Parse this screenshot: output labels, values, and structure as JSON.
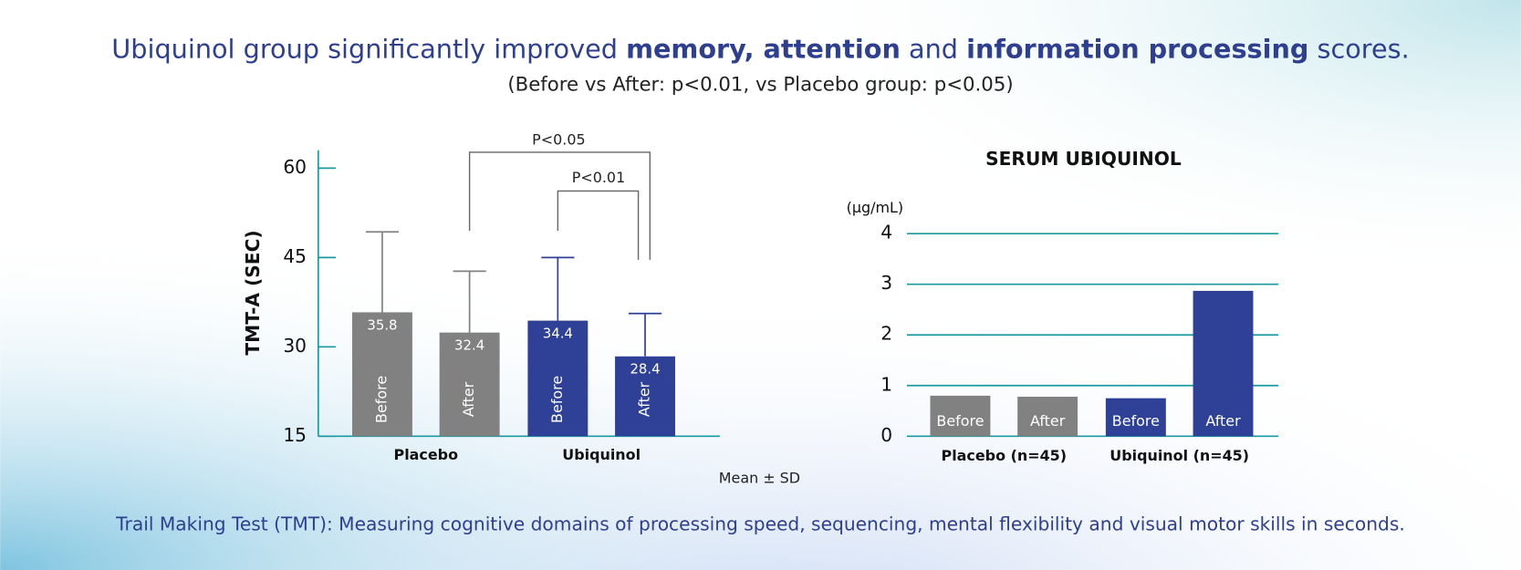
{
  "header": {
    "title_parts": [
      "Ubiquinol group significantly improved ",
      "memory, attention",
      " and ",
      "information processing",
      " scores."
    ],
    "subtitle": "(Before vs After: p<0.01, vs Placebo group: p<0.05)"
  },
  "chart_data": [
    {
      "type": "bar",
      "y_label": "TMT-A (SEC)",
      "note": "Mean ± SD",
      "categories": [
        "Placebo",
        "Ubiquinol"
      ],
      "colors": [
        "#818181",
        "#2e4196"
      ],
      "series": [
        {
          "name": "Before",
          "values": [
            35.8,
            34.4
          ],
          "errors": [
            13.5,
            10.6
          ]
        },
        {
          "name": "After",
          "values": [
            32.4,
            28.4
          ],
          "errors": [
            10.3,
            7.2
          ]
        }
      ],
      "show_values": true,
      "ylim": [
        15,
        63
      ],
      "yticks": [
        15,
        30,
        45,
        60
      ],
      "grid": false,
      "annotations": [
        "P<0.05",
        "P<0.01"
      ]
    },
    {
      "type": "bar",
      "title": "SERUM UBIQUINOL",
      "y_label": "(µg/mL)",
      "categories": [
        "Placebo (n=45)",
        "Ubiquinol (n=45)"
      ],
      "colors": [
        "#818181",
        "#2e4196"
      ],
      "series": [
        {
          "name": "Before",
          "values": [
            0.8,
            0.75
          ]
        },
        {
          "name": "After",
          "values": [
            0.78,
            2.87
          ]
        }
      ],
      "show_values": false,
      "ylim": [
        0,
        4
      ],
      "yticks": [
        0,
        1,
        2,
        3,
        4
      ],
      "grid": true
    }
  ],
  "footer": "Trail Making Test (TMT): Measuring cognitive domains of processing speed, sequencing, mental flexibility and visual motor skills in seconds."
}
